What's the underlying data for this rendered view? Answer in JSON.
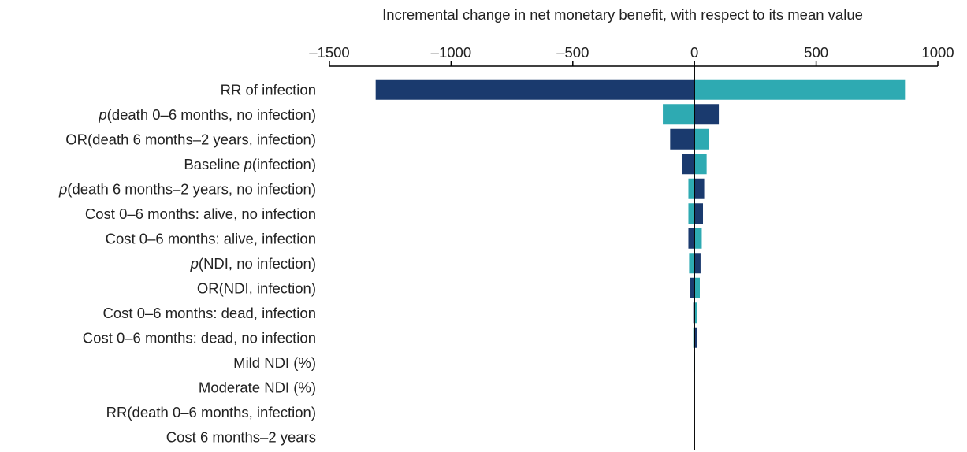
{
  "chart_data": {
    "type": "bar",
    "orientation": "horizontal",
    "subtype": "tornado",
    "xlabel": "Incremental change in net monetary benefit, with respect to its mean value",
    "xaxis_position": "top",
    "xlim": [
      -1500,
      1000
    ],
    "xticks": [
      "–1500",
      "–1000",
      "–500",
      "0",
      "500",
      "1000"
    ],
    "xtick_values": [
      -1500,
      -1000,
      -500,
      0,
      500,
      1000
    ],
    "grid": false,
    "colors": {
      "dark": "#1a3a6e",
      "teal": "#2eaab2",
      "axis": "#000000"
    },
    "categories": [
      {
        "pre": "",
        "italic": "",
        "post": "RR of infection"
      },
      {
        "pre": "",
        "italic": "p",
        "post": "(death 0–6 months, no infection)"
      },
      {
        "pre": "OR(death 6 months–2 years, infection)",
        "italic": "",
        "post": ""
      },
      {
        "pre": "Baseline ",
        "italic": "p",
        "post": "(infection)"
      },
      {
        "pre": "",
        "italic": "p",
        "post": "(death 6 months–2 years, no infection)"
      },
      {
        "pre": "Cost 0–6 months: alive, no infection",
        "italic": "",
        "post": ""
      },
      {
        "pre": "Cost 0–6 months: alive, infection",
        "italic": "",
        "post": ""
      },
      {
        "pre": "",
        "italic": "p",
        "post": "(NDI, no infection)"
      },
      {
        "pre": "OR(NDI, infection)",
        "italic": "",
        "post": ""
      },
      {
        "pre": "Cost 0–6 months: dead, infection",
        "italic": "",
        "post": ""
      },
      {
        "pre": "Cost 0–6 months: dead, no infection",
        "italic": "",
        "post": ""
      },
      {
        "pre": "Mild NDI (%)",
        "italic": "",
        "post": ""
      },
      {
        "pre": "Moderate NDI (%)",
        "italic": "",
        "post": ""
      },
      {
        "pre": "RR(death 0–6 months, infection)",
        "italic": "",
        "post": ""
      },
      {
        "pre": "Cost 6 months–2 years",
        "italic": "",
        "post": ""
      }
    ],
    "bars": [
      {
        "negative": -1310,
        "negative_color": "dark",
        "positive": 865,
        "positive_color": "teal"
      },
      {
        "negative": -130,
        "negative_color": "teal",
        "positive": 100,
        "positive_color": "dark"
      },
      {
        "negative": -100,
        "negative_color": "dark",
        "positive": 60,
        "positive_color": "teal"
      },
      {
        "negative": -50,
        "negative_color": "dark",
        "positive": 50,
        "positive_color": "teal"
      },
      {
        "negative": -25,
        "negative_color": "teal",
        "positive": 40,
        "positive_color": "dark"
      },
      {
        "negative": -25,
        "negative_color": "teal",
        "positive": 35,
        "positive_color": "dark"
      },
      {
        "negative": -25,
        "negative_color": "dark",
        "positive": 30,
        "positive_color": "teal"
      },
      {
        "negative": -22,
        "negative_color": "teal",
        "positive": 25,
        "positive_color": "dark"
      },
      {
        "negative": -18,
        "negative_color": "dark",
        "positive": 22,
        "positive_color": "teal"
      },
      {
        "negative": -5,
        "negative_color": "dark",
        "positive": 12,
        "positive_color": "teal"
      },
      {
        "negative": -5,
        "negative_color": "teal",
        "positive": 12,
        "positive_color": "dark"
      },
      {
        "negative": -2,
        "negative_color": "dark",
        "positive": 2,
        "positive_color": "teal"
      },
      {
        "negative": 0,
        "negative_color": "dark",
        "positive": 0,
        "positive_color": "teal"
      },
      {
        "negative": 0,
        "negative_color": "dark",
        "positive": 0,
        "positive_color": "teal"
      },
      {
        "negative": 0,
        "negative_color": "dark",
        "positive": 0,
        "positive_color": "teal"
      }
    ]
  }
}
